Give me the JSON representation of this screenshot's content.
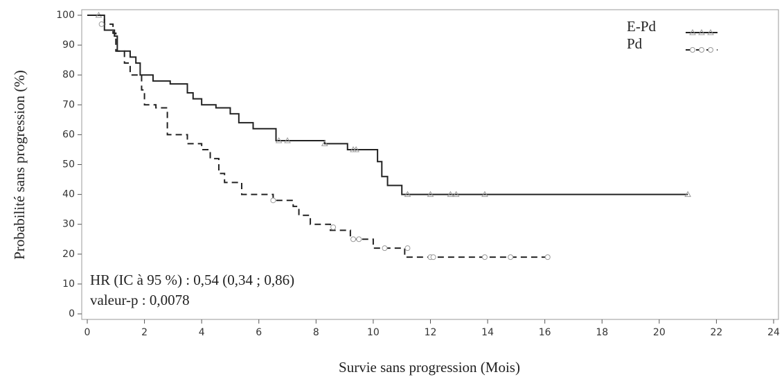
{
  "chart_data": {
    "type": "step",
    "xlabel": "Survie sans progression (Mois)",
    "ylabel": "Probabilité sans progression (%)",
    "xlim": [
      0,
      24
    ],
    "xticks": [
      0,
      2,
      4,
      6,
      8,
      10,
      12,
      14,
      16,
      18,
      20,
      22,
      24
    ],
    "ylim": [
      0,
      100
    ],
    "yticks": [
      0,
      10,
      20,
      30,
      40,
      50,
      60,
      70,
      80,
      90,
      100
    ],
    "grid": false,
    "legend": "upper right",
    "annotations": [
      "HR (IC à 95 %) : 0,54 (0,34 ; 0,86)",
      "valeur-p : 0,0078"
    ],
    "series": [
      {
        "name": "E-Pd",
        "color": "#222222",
        "dash": "solid",
        "marker": "triangle",
        "x": [
          0,
          0.6,
          0.95,
          1.05,
          1.5,
          1.7,
          1.85,
          2.3,
          2.9,
          3.5,
          3.7,
          4.0,
          4.5,
          5.0,
          5.3,
          5.8,
          6.6,
          8.3,
          9.1,
          10.15,
          10.3,
          10.5,
          11.0,
          21.0
        ],
        "values": [
          100,
          95,
          93,
          88,
          86,
          84,
          80,
          78,
          77,
          74,
          72,
          70,
          69,
          67,
          64,
          62,
          58,
          57,
          55,
          51,
          46,
          43,
          40,
          40
        ],
        "censored_x": [
          0.4,
          6.7,
          7.0,
          8.3,
          9.3,
          9.4,
          11.2,
          12.0,
          12.7,
          12.9,
          13.9,
          21.0
        ],
        "censored_values": [
          100,
          58,
          58,
          57,
          55,
          55,
          40,
          40,
          40,
          40,
          40,
          40
        ]
      },
      {
        "name": "Pd",
        "color": "#222222",
        "dash": "dashed",
        "marker": "circle",
        "x": [
          0,
          0.6,
          0.9,
          1.0,
          1.3,
          1.5,
          1.9,
          2.0,
          2.4,
          2.8,
          3.5,
          4.0,
          4.3,
          4.6,
          4.8,
          5.4,
          6.5,
          7.2,
          7.4,
          7.8,
          8.5,
          9.2,
          10.0,
          11.1,
          16.1
        ],
        "values": [
          100,
          97,
          94,
          88,
          84,
          80,
          75,
          70,
          69,
          60,
          57,
          55,
          52,
          47,
          44,
          40,
          38,
          36,
          33,
          30,
          28,
          25,
          22,
          19,
          19
        ],
        "censored_x": [
          0.5,
          6.5,
          8.6,
          9.3,
          9.5,
          10.4,
          11.2,
          12.0,
          12.1,
          13.9,
          14.8,
          16.1
        ],
        "censored_values": [
          97,
          38,
          29,
          25,
          25,
          22,
          22,
          19,
          19,
          19,
          19,
          19
        ]
      }
    ]
  }
}
